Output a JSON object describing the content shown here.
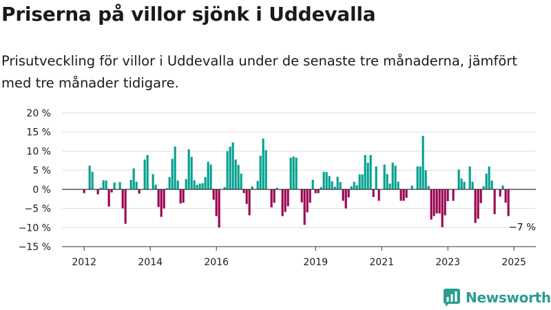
{
  "title": "Priserna på villor sjönk i Uddevalla",
  "subtitle": "Prisutveckling för villor i Uddevalla under de senaste tre månaderna, jämfört med tre månader tidigare.",
  "brand": {
    "name": "Newsworthy",
    "color": "#2a9d8f"
  },
  "colors": {
    "positive": "#00a08f",
    "negative": "#9a0050",
    "grid": "#dddddd",
    "axis": "#333333"
  },
  "end_label": "−7 %",
  "chart_data": {
    "type": "bar",
    "xlabel": "",
    "ylabel": "",
    "ylim": [
      -15,
      20
    ],
    "y_ticks": [
      20,
      15,
      10,
      5,
      0,
      -5,
      -10,
      -15
    ],
    "y_tick_labels": [
      "20 %",
      "15 %",
      "10 %",
      "5 %",
      "0 %",
      "−5 %",
      "−10 %",
      "−15 %"
    ],
    "x_ticks": [
      {
        "year": 2012,
        "label": "2012"
      },
      {
        "year": 2014,
        "label": "2014"
      },
      {
        "year": 2016,
        "label": "2016"
      },
      {
        "year": 2019,
        "label": "2019"
      },
      {
        "year": 2021,
        "label": "2021"
      },
      {
        "year": 2023,
        "label": "2023"
      },
      {
        "year": 2025,
        "label": "2025"
      }
    ],
    "grid": true,
    "legend": "none",
    "start": "2012-01",
    "frequency": "monthly",
    "unit": "%",
    "values": [
      -1,
      0,
      6.2,
      4.6,
      0,
      -1.3,
      0.4,
      2.4,
      2.3,
      -4.5,
      -0.8,
      1.8,
      0,
      1.9,
      -5,
      -9,
      0,
      2.5,
      5.5,
      2,
      -1.1,
      0,
      7.8,
      9,
      0,
      4,
      1.2,
      -4.6,
      -7.2,
      -5,
      0.3,
      3.2,
      8,
      11.2,
      2.3,
      -3.7,
      -3.5,
      2.7,
      10.5,
      8.5,
      2.4,
      1.2,
      1.5,
      1.6,
      3.2,
      7.2,
      6.5,
      -2.7,
      -7,
      -10,
      0,
      0.6,
      10,
      11.2,
      12.3,
      7.8,
      6.4,
      4.1,
      -1,
      -3.8,
      -6.8,
      0.8,
      0,
      2.2,
      8.8,
      13.3,
      10.3,
      0,
      -4.7,
      -3.5,
      0.4,
      0,
      -7,
      -5.9,
      -4.4,
      8.3,
      8.6,
      8.3,
      0,
      -3.4,
      -9.3,
      -6,
      -3.5,
      2.5,
      -1,
      -1,
      0.6,
      4.6,
      4.5,
      3.5,
      2.1,
      0.7,
      3.3,
      1.9,
      -3,
      -5,
      -2.1,
      0.8,
      2,
      1.1,
      3.9,
      3.9,
      9,
      7,
      9,
      -2,
      6,
      -3,
      0,
      6.5,
      4,
      1.5,
      7,
      6.2,
      2,
      -3,
      -3,
      -2.2,
      0,
      1,
      0,
      6,
      6,
      14,
      5,
      0.9,
      -7.9,
      -7,
      -6.3,
      -6.3,
      -9.9,
      -6.8,
      -3.1,
      0,
      -3,
      0,
      5.2,
      2.8,
      2,
      0,
      6,
      2,
      -8.8,
      -7.7,
      -3.6,
      0.8,
      4.1,
      6,
      2.3,
      -6.5,
      0,
      -1.9,
      1,
      -3.5,
      -7
    ]
  }
}
